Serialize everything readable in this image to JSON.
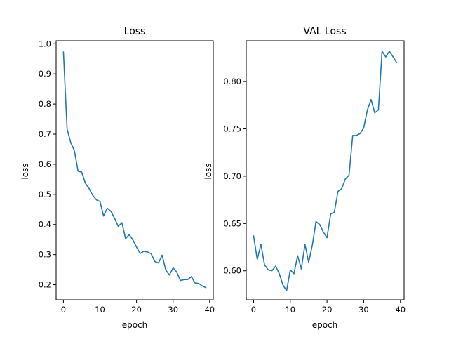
{
  "chart_data": [
    {
      "type": "line",
      "title": "Loss",
      "xlabel": "epoch",
      "ylabel": "loss",
      "xlim": [
        -2,
        41
      ],
      "ylim": [
        0.15,
        1.01
      ],
      "xticks": [
        0,
        10,
        20,
        30,
        40
      ],
      "yticks": [
        0.2,
        0.3,
        0.4,
        0.5,
        0.6,
        0.7,
        0.8,
        0.9,
        1.0
      ],
      "ytick_labels": [
        "0.2",
        "0.3",
        "0.4",
        "0.5",
        "0.6",
        "0.7",
        "0.8",
        "0.9",
        "1.0"
      ],
      "grid": false,
      "color": "#1f77b4",
      "x": [
        0,
        1,
        2,
        3,
        4,
        5,
        6,
        7,
        8,
        9,
        10,
        11,
        12,
        13,
        14,
        15,
        16,
        17,
        18,
        19,
        20,
        21,
        22,
        23,
        24,
        25,
        26,
        27,
        28,
        29,
        30,
        31,
        32,
        33,
        34,
        35,
        36,
        37,
        38,
        39
      ],
      "values": [
        0.973,
        0.717,
        0.672,
        0.645,
        0.577,
        0.574,
        0.537,
        0.52,
        0.497,
        0.482,
        0.476,
        0.428,
        0.454,
        0.444,
        0.42,
        0.394,
        0.406,
        0.353,
        0.366,
        0.349,
        0.325,
        0.304,
        0.311,
        0.309,
        0.303,
        0.277,
        0.272,
        0.298,
        0.249,
        0.232,
        0.256,
        0.242,
        0.214,
        0.217,
        0.217,
        0.227,
        0.206,
        0.204,
        0.196,
        0.19
      ]
    },
    {
      "type": "line",
      "title": "VAL Loss",
      "xlabel": "epoch",
      "ylabel": "loss",
      "xlim": [
        -2,
        41
      ],
      "ylim": [
        0.5694,
        0.8431
      ],
      "xticks": [
        0,
        10,
        20,
        30,
        40
      ],
      "yticks": [
        0.6,
        0.65,
        0.7,
        0.75,
        0.8
      ],
      "ytick_labels": [
        "0.60",
        "0.65",
        "0.70",
        "0.75",
        "0.80"
      ],
      "grid": false,
      "color": "#1f77b4",
      "x": [
        0,
        1,
        2,
        3,
        4,
        5,
        6,
        7,
        8,
        9,
        10,
        11,
        12,
        13,
        14,
        15,
        16,
        17,
        18,
        19,
        20,
        21,
        22,
        23,
        24,
        25,
        26,
        27,
        28,
        29,
        30,
        31,
        32,
        33,
        34,
        35,
        36,
        37,
        38,
        39
      ],
      "values": [
        0.637,
        0.612,
        0.628,
        0.606,
        0.601,
        0.6,
        0.605,
        0.597,
        0.585,
        0.579,
        0.601,
        0.597,
        0.616,
        0.602,
        0.628,
        0.609,
        0.627,
        0.652,
        0.649,
        0.641,
        0.635,
        0.66,
        0.662,
        0.684,
        0.687,
        0.697,
        0.701,
        0.743,
        0.743,
        0.745,
        0.751,
        0.77,
        0.781,
        0.767,
        0.77,
        0.832,
        0.826,
        0.832,
        0.826,
        0.82
      ]
    }
  ]
}
